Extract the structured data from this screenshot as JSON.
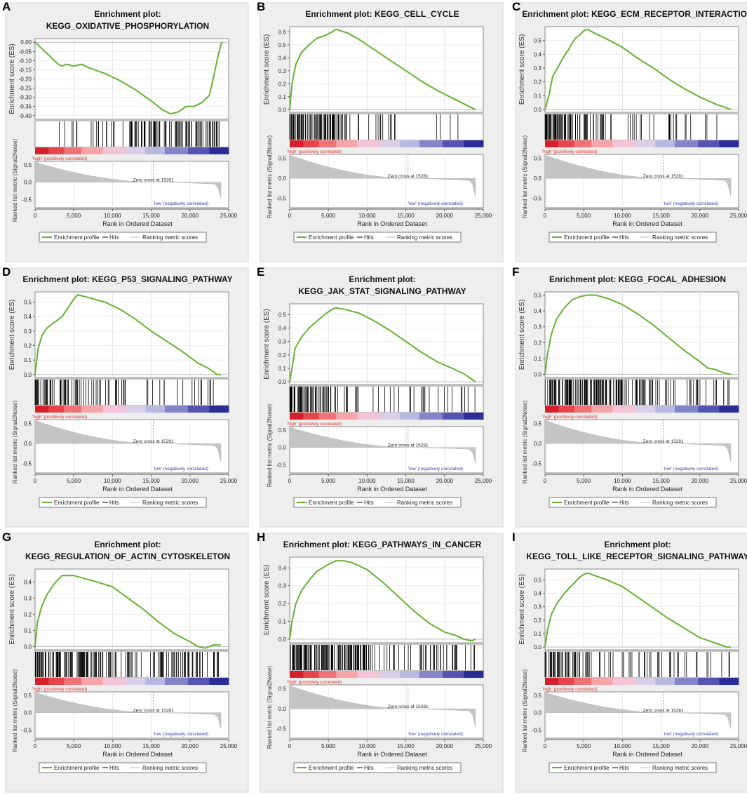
{
  "figure": {
    "common": {
      "es_ylabel": "Enrichment score (ES)",
      "metric_ylabel": "Ranked list metric (Signal2Noise)",
      "xlabel": "Rank in Ordered Dataset",
      "high_label": "'high' (positively correlated)",
      "low_label": "'low' (negatively correlated)",
      "zero_cross_label": "Zero cross at 15281",
      "legend": [
        "Enrichment profile",
        "Hits",
        "Ranking metric scores"
      ],
      "x_ticks": [
        "0",
        "5,000",
        "10,000",
        "15,000",
        "20,000",
        "25,000"
      ],
      "metric_ticks": [
        "0.5",
        "0.0",
        "-0.5"
      ],
      "colors": {
        "es_line": "#66b032",
        "hit": "#000000",
        "metric_fill": "#c4c4c4",
        "panel_bg": "#eeeeee",
        "high_text": "#e0302a",
        "low_text": "#3b3ba8"
      }
    }
  },
  "chart_data": [
    {
      "type": "line",
      "panel": "A",
      "title": [
        "Enrichment plot:",
        "KEGG_OXIDATIVE_PHOSPHORYLATION"
      ],
      "ylim": [
        -0.42,
        0.02
      ],
      "yticks": [
        0.0,
        -0.05,
        -0.1,
        -0.15,
        -0.2,
        -0.25,
        -0.3,
        -0.35,
        -0.4
      ],
      "ytick_labels": [
        "0.00",
        "-0.05",
        "-0.10",
        "-0.15",
        "-0.20",
        "-0.25",
        "-0.30",
        "-0.35",
        "-0.40"
      ],
      "x": [
        0,
        1500,
        3000,
        3500,
        4000,
        5000,
        6000,
        7000,
        9000,
        11000,
        13000,
        15000,
        16500,
        17500,
        18500,
        19500,
        20500,
        21500,
        22500,
        23000,
        23500,
        24000,
        24200
      ],
      "y": [
        0,
        -0.06,
        -0.12,
        -0.13,
        -0.12,
        -0.13,
        -0.12,
        -0.14,
        -0.17,
        -0.21,
        -0.26,
        -0.32,
        -0.37,
        -0.39,
        -0.38,
        -0.35,
        -0.35,
        -0.33,
        -0.29,
        -0.2,
        -0.1,
        -0.01,
        0.0
      ],
      "hits_density": "late"
    },
    {
      "type": "line",
      "panel": "B",
      "title": [
        "Enrichment plot: KEGG_CELL_CYCLE"
      ],
      "ylim": [
        -0.02,
        0.64
      ],
      "yticks": [
        0,
        0.1,
        0.2,
        0.3,
        0.4,
        0.5,
        0.6
      ],
      "ytick_labels": [
        "0.0",
        "0.1",
        "0.2",
        "0.3",
        "0.4",
        "0.5",
        "0.6"
      ],
      "x": [
        0,
        300,
        800,
        1500,
        2500,
        3500,
        4500,
        5500,
        6000,
        7500,
        9000,
        11000,
        13000,
        15000,
        17000,
        19000,
        21000,
        23000,
        24000
      ],
      "y": [
        0,
        0.2,
        0.35,
        0.44,
        0.5,
        0.55,
        0.57,
        0.6,
        0.62,
        0.59,
        0.54,
        0.46,
        0.38,
        0.3,
        0.22,
        0.15,
        0.09,
        0.03,
        0.0
      ],
      "hits_density": "early"
    },
    {
      "type": "line",
      "panel": "C",
      "title": [
        "Enrichment plot: KEGG_ECM_RECEPTOR_INTERACTION"
      ],
      "ylim": [
        -0.02,
        0.6
      ],
      "yticks": [
        0,
        0.1,
        0.2,
        0.3,
        0.4,
        0.5
      ],
      "ytick_labels": [
        "0.0",
        "0.1",
        "0.2",
        "0.3",
        "0.4",
        "0.5"
      ],
      "x": [
        0,
        500,
        1000,
        2000,
        2500,
        3000,
        3500,
        4000,
        4500,
        5000,
        5500,
        6500,
        8000,
        10000,
        12000,
        14000,
        16000,
        18000,
        20000,
        22000,
        23500,
        24000
      ],
      "y": [
        0,
        0.1,
        0.24,
        0.34,
        0.39,
        0.43,
        0.48,
        0.52,
        0.54,
        0.57,
        0.58,
        0.55,
        0.51,
        0.45,
        0.37,
        0.3,
        0.22,
        0.15,
        0.09,
        0.04,
        0.01,
        0.0
      ],
      "hits_density": "early"
    },
    {
      "type": "line",
      "panel": "D",
      "title": [
        "Enrichment plot: KEGG_P53_SIGNALING_PATHWAY"
      ],
      "ylim": [
        -0.02,
        0.57
      ],
      "yticks": [
        0,
        0.1,
        0.2,
        0.3,
        0.4,
        0.5
      ],
      "ytick_labels": [
        "0.0",
        "0.1",
        "0.2",
        "0.3",
        "0.4",
        "0.5"
      ],
      "x": [
        0,
        400,
        900,
        1500,
        2500,
        3500,
        4500,
        5000,
        5500,
        7000,
        9000,
        11000,
        13000,
        15000,
        17000,
        19000,
        21000,
        22500,
        23500,
        24000
      ],
      "y": [
        0,
        0.18,
        0.27,
        0.32,
        0.36,
        0.4,
        0.48,
        0.52,
        0.55,
        0.53,
        0.5,
        0.45,
        0.38,
        0.3,
        0.23,
        0.16,
        0.08,
        0.04,
        0.0,
        0.0
      ],
      "hits_density": "mixed"
    },
    {
      "type": "line",
      "panel": "E",
      "title": [
        "Enrichment plot:",
        "KEGG_JAK_STAT_SIGNALING_PATHWAY"
      ],
      "ylim": [
        -0.02,
        0.58
      ],
      "yticks": [
        0,
        0.1,
        0.2,
        0.3,
        0.4,
        0.5
      ],
      "ytick_labels": [
        "0.0",
        "0.1",
        "0.2",
        "0.3",
        "0.4",
        "0.5"
      ],
      "x": [
        0,
        300,
        700,
        1500,
        2500,
        3500,
        4500,
        5500,
        6000,
        7000,
        9000,
        11000,
        13000,
        15000,
        17000,
        19000,
        21000,
        22500,
        24000
      ],
      "y": [
        0,
        0.1,
        0.25,
        0.33,
        0.4,
        0.45,
        0.5,
        0.54,
        0.55,
        0.54,
        0.51,
        0.45,
        0.38,
        0.3,
        0.22,
        0.15,
        0.1,
        0.06,
        0.0
      ],
      "hits_density": "early"
    },
    {
      "type": "line",
      "panel": "F",
      "title": [
        "Enrichment plot: KEGG_FOCAL_ADHESION"
      ],
      "ylim": [
        -0.02,
        0.52
      ],
      "yticks": [
        0,
        0.1,
        0.2,
        0.3,
        0.4,
        0.5
      ],
      "ytick_labels": [
        "0.0",
        "0.1",
        "0.2",
        "0.3",
        "0.4",
        "0.5"
      ],
      "x": [
        0,
        300,
        800,
        1500,
        2500,
        3500,
        4500,
        5500,
        6500,
        8000,
        10000,
        12000,
        14000,
        16000,
        18000,
        20000,
        21000,
        22000,
        23000,
        24000
      ],
      "y": [
        0,
        0.12,
        0.25,
        0.35,
        0.42,
        0.47,
        0.49,
        0.5,
        0.5,
        0.48,
        0.44,
        0.38,
        0.31,
        0.23,
        0.15,
        0.08,
        0.04,
        0.03,
        0.01,
        0.0
      ],
      "hits_density": "dense"
    },
    {
      "type": "line",
      "panel": "G",
      "title": [
        "Enrichment plot:",
        "KEGG_REGULATION_OF_ACTIN_CYTOSKELETON"
      ],
      "ylim": [
        -0.02,
        0.48
      ],
      "yticks": [
        0,
        0.1,
        0.2,
        0.3,
        0.4
      ],
      "ytick_labels": [
        "0.0",
        "0.1",
        "0.2",
        "0.3",
        "0.4"
      ],
      "x": [
        0,
        300,
        800,
        1500,
        2500,
        3500,
        5000,
        6500,
        8000,
        10000,
        12000,
        14000,
        16000,
        18000,
        20000,
        21000,
        22000,
        23000,
        24000
      ],
      "y": [
        0,
        0.15,
        0.24,
        0.32,
        0.39,
        0.44,
        0.44,
        0.42,
        0.4,
        0.37,
        0.3,
        0.23,
        0.15,
        0.08,
        0.03,
        0.0,
        -0.01,
        0.01,
        0.01
      ],
      "hits_density": "dense"
    },
    {
      "type": "line",
      "panel": "H",
      "title": [
        "Enrichment plot: KEGG_PATHWAYS_IN_CANCER"
      ],
      "ylim": [
        -0.02,
        0.46
      ],
      "yticks": [
        0,
        0.1,
        0.2,
        0.3,
        0.4
      ],
      "ytick_labels": [
        "0.0",
        "0.1",
        "0.2",
        "0.3",
        "0.4"
      ],
      "x": [
        0,
        300,
        800,
        1500,
        2500,
        3500,
        5000,
        6000,
        7000,
        8000,
        10000,
        12000,
        14000,
        16000,
        18000,
        20000,
        21500,
        22500,
        23500,
        24000
      ],
      "y": [
        0,
        0.1,
        0.2,
        0.27,
        0.33,
        0.38,
        0.42,
        0.44,
        0.44,
        0.43,
        0.39,
        0.32,
        0.24,
        0.16,
        0.09,
        0.04,
        0.02,
        0.0,
        -0.01,
        0.0
      ],
      "hits_density": "dense"
    },
    {
      "type": "line",
      "panel": "I",
      "title": [
        "Enrichment plot:",
        "KEGG_TOLL_LIKE_RECEPTOR_SIGNALING_PATHWAY"
      ],
      "ylim": [
        -0.02,
        0.58
      ],
      "yticks": [
        0,
        0.1,
        0.2,
        0.3,
        0.4,
        0.5
      ],
      "ytick_labels": [
        "0.0",
        "0.1",
        "0.2",
        "0.3",
        "0.4",
        "0.5"
      ],
      "x": [
        0,
        300,
        800,
        1500,
        2500,
        3500,
        4500,
        5000,
        5500,
        6500,
        8000,
        10000,
        12000,
        14000,
        16000,
        18000,
        20000,
        22000,
        23500,
        24000
      ],
      "y": [
        0,
        0.12,
        0.24,
        0.32,
        0.4,
        0.46,
        0.52,
        0.54,
        0.55,
        0.53,
        0.5,
        0.45,
        0.37,
        0.29,
        0.21,
        0.14,
        0.07,
        0.03,
        0.0,
        0.0
      ],
      "hits_density": "mixed"
    }
  ]
}
